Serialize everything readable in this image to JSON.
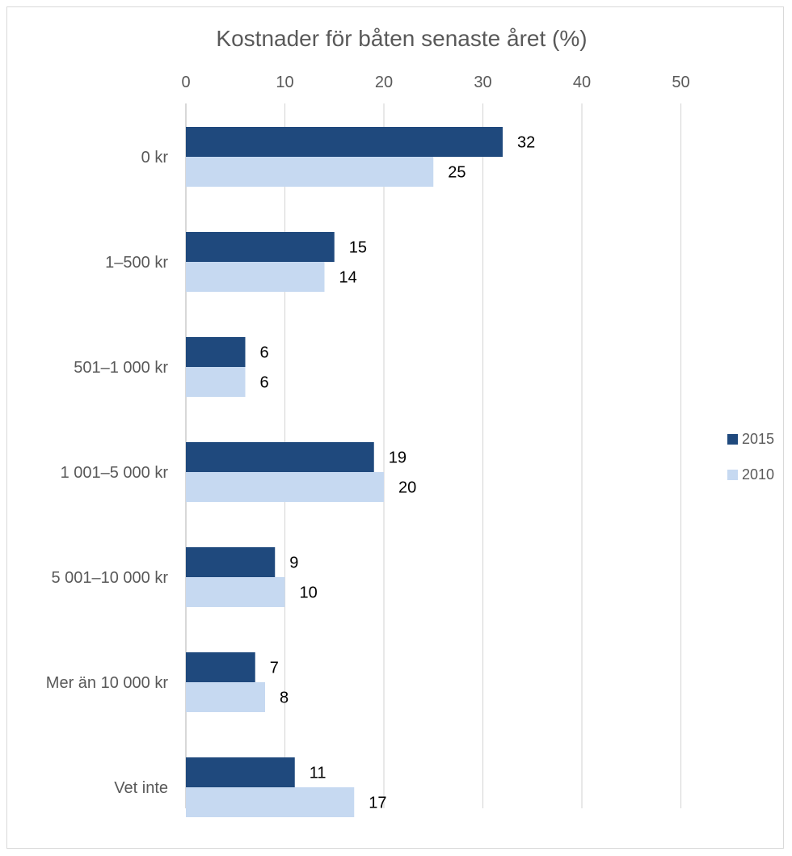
{
  "chart_data": {
    "type": "bar",
    "orientation": "horizontal",
    "title": "Kostnader för båten senaste året (%)",
    "xlabel": "",
    "ylabel": "",
    "xlim": [
      0,
      50
    ],
    "x_ticks": [
      "0",
      "10",
      "20",
      "30",
      "40",
      "50"
    ],
    "x_axis_position": "top",
    "grid": true,
    "legend_position": "right",
    "categories": [
      "0 kr",
      "1–500 kr",
      "501–1 000 kr",
      "1 001–5 000 kr",
      "5 001–10 000 kr",
      "Mer än 10 000 kr",
      "Vet inte"
    ],
    "series": [
      {
        "name": "2015",
        "color": "#1f497d",
        "values": [
          32,
          15,
          6,
          19,
          9,
          7,
          11
        ]
      },
      {
        "name": "2010",
        "color": "#c6d9f1",
        "values": [
          25,
          14,
          6,
          20,
          10,
          8,
          17
        ]
      }
    ],
    "data_labels": true
  }
}
